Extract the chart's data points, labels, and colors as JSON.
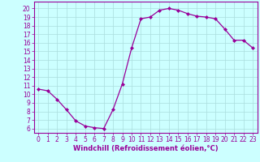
{
  "x": [
    0,
    1,
    2,
    3,
    4,
    5,
    6,
    7,
    8,
    9,
    10,
    11,
    12,
    13,
    14,
    15,
    16,
    17,
    18,
    19,
    20,
    21,
    22,
    23
  ],
  "y": [
    10.6,
    10.4,
    9.4,
    8.2,
    6.9,
    6.3,
    6.1,
    6.0,
    8.2,
    11.2,
    15.4,
    18.8,
    19.0,
    19.8,
    20.0,
    19.8,
    19.4,
    19.1,
    19.0,
    18.8,
    17.6,
    16.3,
    16.3,
    15.4
  ],
  "line_color": "#990099",
  "marker": "D",
  "marker_size": 2,
  "bg_color": "#ccffff",
  "grid_color": "#aadddd",
  "xlabel": "Windchill (Refroidissement éolien,°C)",
  "xlabel_color": "#990099",
  "xlabel_fontsize": 6.0,
  "ylabel_ticks": [
    6,
    7,
    8,
    9,
    10,
    11,
    12,
    13,
    14,
    15,
    16,
    17,
    18,
    19,
    20
  ],
  "xticks": [
    0,
    1,
    2,
    3,
    4,
    5,
    6,
    7,
    8,
    9,
    10,
    11,
    12,
    13,
    14,
    15,
    16,
    17,
    18,
    19,
    20,
    21,
    22,
    23
  ],
  "ylim": [
    5.5,
    20.8
  ],
  "xlim": [
    -0.5,
    23.5
  ],
  "tick_color": "#990099",
  "tick_fontsize": 5.5,
  "spine_color": "#990099",
  "linewidth": 0.9
}
